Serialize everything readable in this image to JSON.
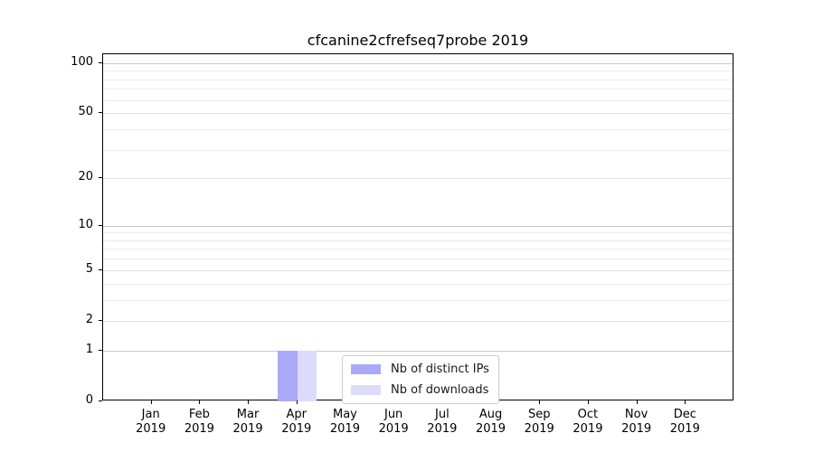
{
  "chart_data": {
    "type": "bar",
    "title": "cfcanine2cfrefseq7probe 2019",
    "categories": [
      {
        "month": "Jan",
        "year": "2019"
      },
      {
        "month": "Feb",
        "year": "2019"
      },
      {
        "month": "Mar",
        "year": "2019"
      },
      {
        "month": "Apr",
        "year": "2019"
      },
      {
        "month": "May",
        "year": "2019"
      },
      {
        "month": "Jun",
        "year": "2019"
      },
      {
        "month": "Jul",
        "year": "2019"
      },
      {
        "month": "Aug",
        "year": "2019"
      },
      {
        "month": "Sep",
        "year": "2019"
      },
      {
        "month": "Oct",
        "year": "2019"
      },
      {
        "month": "Nov",
        "year": "2019"
      },
      {
        "month": "Dec",
        "year": "2019"
      }
    ],
    "series": [
      {
        "name": "Nb of distinct IPs",
        "values": [
          0,
          0,
          0,
          1,
          0,
          0,
          0,
          0,
          0,
          0,
          0,
          0
        ]
      },
      {
        "name": "Nb of downloads",
        "values": [
          0,
          0,
          0,
          1,
          0,
          0,
          0,
          0,
          0,
          0,
          0,
          0
        ]
      }
    ],
    "xlabel": "",
    "ylabel": "",
    "yscale": "log1p",
    "ylim": [
      0,
      113
    ],
    "yticks": [
      0,
      1,
      2,
      5,
      10,
      20,
      50,
      100
    ],
    "yticks_minor": [
      3,
      4,
      6,
      7,
      8,
      9,
      30,
      40,
      60,
      70,
      80,
      90
    ],
    "grid": "horizontal",
    "legend_position": "lower-center-inside"
  },
  "colors": {
    "bar_ips": "#a9a9f7",
    "bar_downloads": "#dcdcfa",
    "grid_major": "#c9c9c9",
    "grid_mid": "#e2e2e2",
    "grid_minor": "#ececec",
    "legend_border": "#cccccc",
    "spine": "#000000",
    "text": "#000000"
  }
}
